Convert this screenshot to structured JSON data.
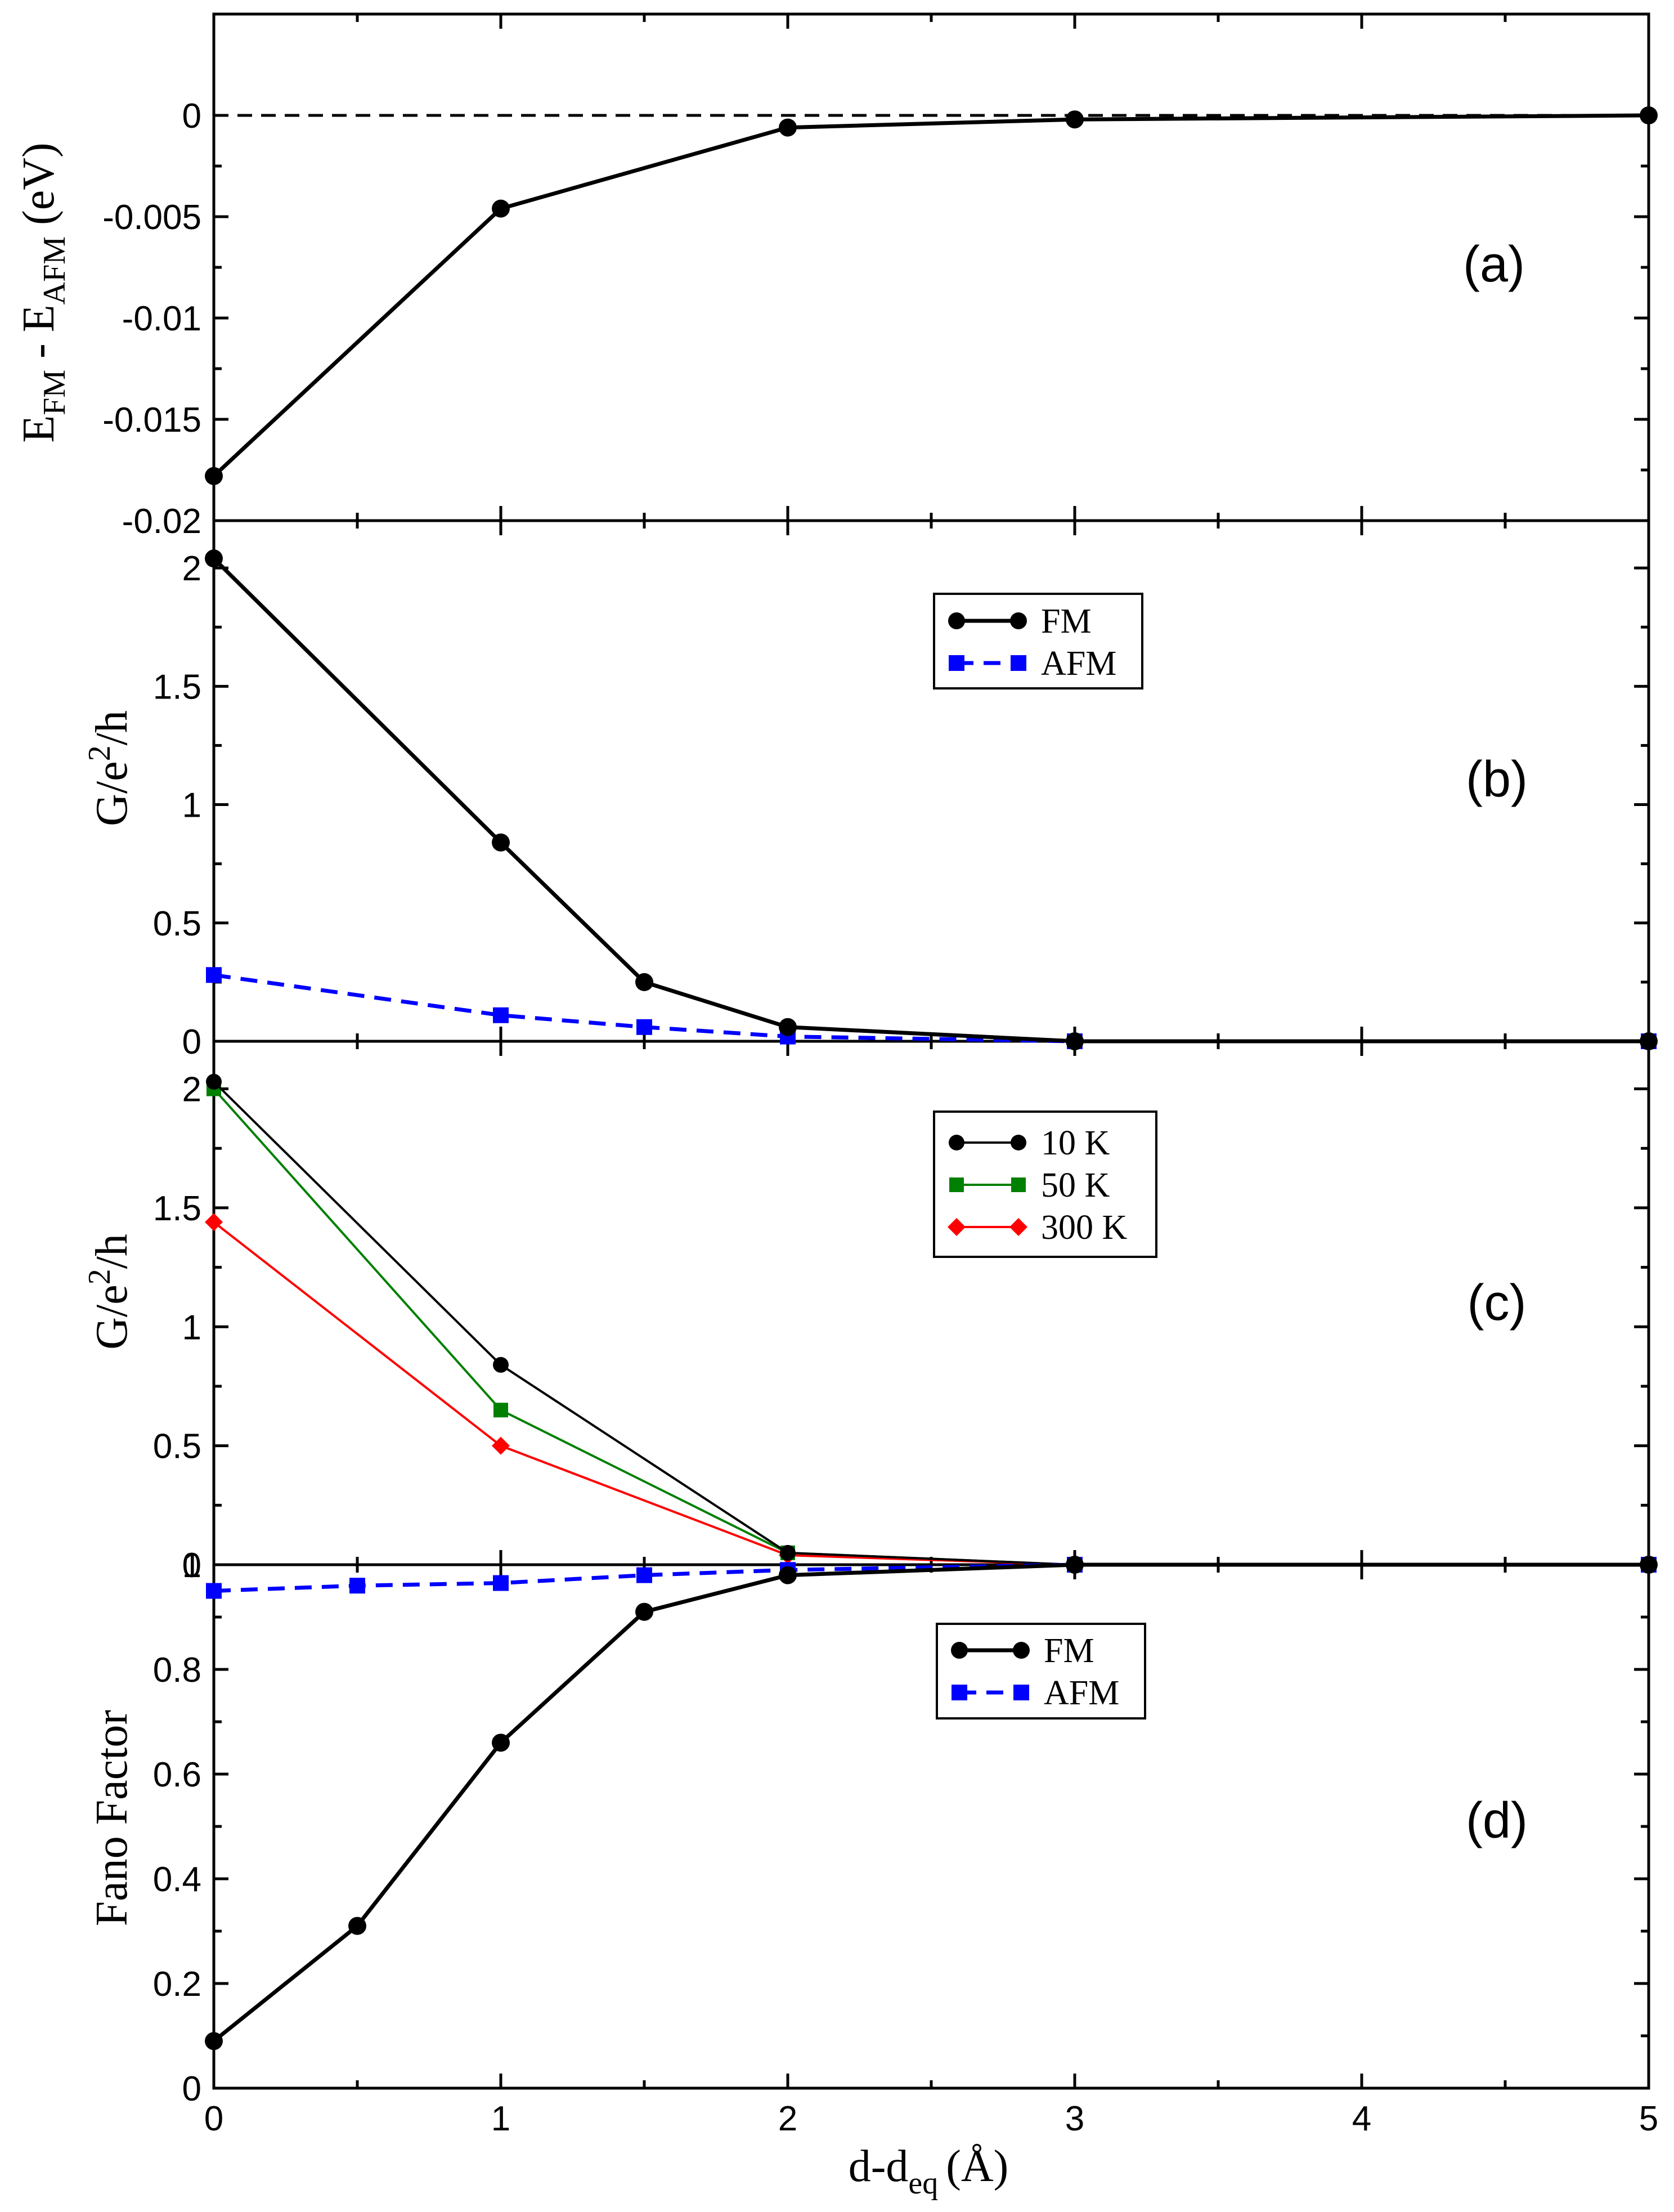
{
  "chart_data": {
    "type": "line",
    "xlabel": "d-d",
    "xlabel_sub": "eq",
    "xlabel_unit": "(Å)",
    "xlim": [
      0,
      5
    ],
    "xticks": [
      "0",
      "1",
      "2",
      "3",
      "4",
      "5"
    ],
    "panels": [
      {
        "id": "a",
        "tag": "(a)",
        "ylabel_main": "E",
        "ylabel_sub1": "FM",
        "ylabel_mid": " - E",
        "ylabel_sub2": "AFM",
        "ylabel_unit": " (eV)",
        "ylim": [
          -0.02,
          0.005
        ],
        "yticks": [
          "0",
          "-0.005",
          "-0.01",
          "-0.015",
          "-0.02"
        ],
        "reference_line": 0,
        "series": [
          {
            "name": "E_FM - E_AFM",
            "color": "#000000",
            "style": "solid",
            "marker": "circle",
            "x": [
              0,
              1,
              2,
              3,
              5
            ],
            "y": [
              -0.0178,
              -0.0046,
              -0.0006,
              -0.0002,
              0.0
            ]
          }
        ]
      },
      {
        "id": "b",
        "tag": "(b)",
        "ylabel_main": "G/e",
        "ylabel_sup": "2",
        "ylabel_tail": "/h",
        "ylim": [
          0,
          2.2
        ],
        "yticks": [
          "0",
          "0.5",
          "1",
          "1.5",
          "2"
        ],
        "legend": [
          "FM",
          "AFM"
        ],
        "series": [
          {
            "name": "FM",
            "color": "#000000",
            "style": "solid",
            "marker": "circle",
            "x": [
              0,
              1,
              1.5,
              2,
              3,
              5
            ],
            "y": [
              2.04,
              0.84,
              0.25,
              0.06,
              0.0,
              0.0
            ]
          },
          {
            "name": "AFM",
            "color": "#0000ff",
            "style": "dashed",
            "marker": "square",
            "x": [
              0,
              1,
              1.5,
              2,
              3,
              5
            ],
            "y": [
              0.28,
              0.11,
              0.06,
              0.02,
              0.0,
              0.0
            ]
          }
        ]
      },
      {
        "id": "c",
        "tag": "(c)",
        "ylabel_main": "G/e",
        "ylabel_sup": "2",
        "ylabel_tail": "/h",
        "ylim": [
          0,
          2.2
        ],
        "yticks": [
          "0",
          "0.5",
          "1",
          "1.5",
          "2"
        ],
        "legend": [
          "10 K",
          "50 K",
          "300 K"
        ],
        "series": [
          {
            "name": "10 K",
            "color": "#000000",
            "style": "thin",
            "marker": "circle",
            "x": [
              0,
              1,
              2,
              3,
              5
            ],
            "y": [
              2.03,
              0.84,
              0.05,
              0.0,
              0.0
            ]
          },
          {
            "name": "50 K",
            "color": "#008000",
            "style": "thin",
            "marker": "square",
            "x": [
              0,
              1,
              2,
              3,
              5
            ],
            "y": [
              2.0,
              0.65,
              0.05,
              0.0,
              0.0
            ]
          },
          {
            "name": "300 K",
            "color": "#ff0000",
            "style": "thin",
            "marker": "diamond",
            "x": [
              0,
              1,
              2,
              3,
              5
            ],
            "y": [
              1.44,
              0.5,
              0.04,
              0.0,
              0.0
            ]
          }
        ]
      },
      {
        "id": "d",
        "tag": "(d)",
        "ylabel_main": "Fano Factor",
        "ylim": [
          0,
          1.0
        ],
        "yticks": [
          "0",
          "0.2",
          "0.4",
          "0.6",
          "0.8",
          "1"
        ],
        "legend": [
          "FM",
          "AFM"
        ],
        "series": [
          {
            "name": "FM",
            "color": "#000000",
            "style": "solid",
            "marker": "circle",
            "x": [
              0,
              0.5,
              1,
              1.5,
              2,
              3,
              5
            ],
            "y": [
              0.09,
              0.31,
              0.66,
              0.91,
              0.98,
              1.0,
              1.0
            ]
          },
          {
            "name": "AFM",
            "color": "#0000ff",
            "style": "dashed",
            "marker": "square",
            "x": [
              0,
              0.5,
              1,
              1.5,
              2,
              3,
              5
            ],
            "y": [
              0.95,
              0.96,
              0.965,
              0.98,
              0.99,
              1.0,
              1.0
            ]
          }
        ]
      }
    ]
  }
}
